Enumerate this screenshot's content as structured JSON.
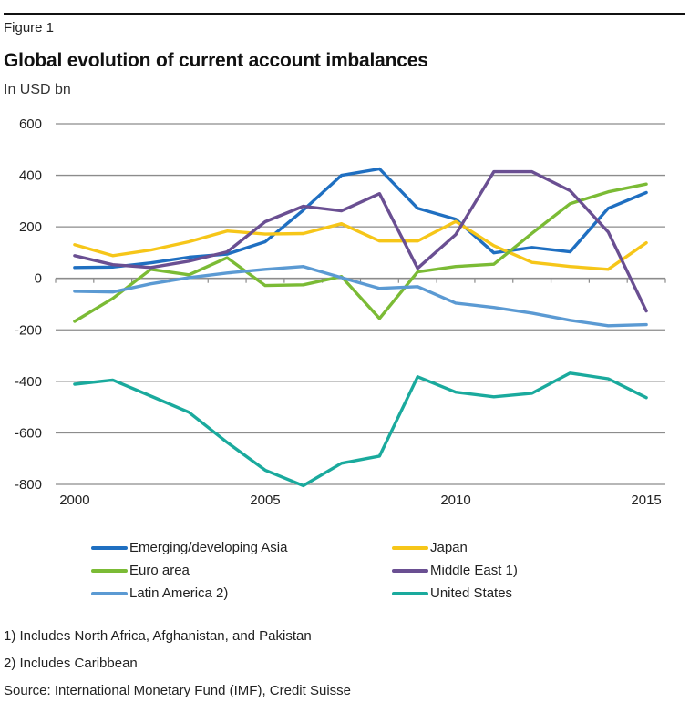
{
  "header": {
    "figure_label": "Figure 1",
    "title": "Global evolution of current account imbalances",
    "subtitle": "In USD bn"
  },
  "chart_data": {
    "type": "line",
    "title": "Global evolution of current account imbalances",
    "subtitle": "In USD bn",
    "xlabel": "",
    "ylabel": "In USD bn",
    "x": [
      2000,
      2001,
      2002,
      2003,
      2004,
      2005,
      2006,
      2007,
      2008,
      2009,
      2010,
      2011,
      2012,
      2013,
      2014,
      2015
    ],
    "x_tick_labels": [
      "2000",
      "2005",
      "2010",
      "2015"
    ],
    "y_ticks": [
      600,
      400,
      200,
      0,
      -200,
      -400,
      -600,
      -800
    ],
    "y_tick_labels": [
      "600",
      "400",
      "200",
      "0",
      "-200",
      "-400",
      "-600",
      "-800"
    ],
    "ylim": [
      -800,
      600
    ],
    "grid": true,
    "legend_position": "bottom",
    "series": [
      {
        "name": "Emerging/developing Asia",
        "color": "#1f6fc1",
        "values": [
          42,
          44,
          60,
          82,
          94,
          142,
          265,
          400,
          425,
          272,
          230,
          99,
          120,
          103,
          272,
          333
        ]
      },
      {
        "name": "Japan",
        "color": "#f6c619",
        "values": [
          131,
          88,
          110,
          142,
          184,
          172,
          174,
          212,
          145,
          145,
          221,
          127,
          62,
          46,
          35,
          138
        ]
      },
      {
        "name": "Euro area",
        "color": "#7bbb35",
        "values": [
          -167,
          -78,
          35,
          14,
          80,
          -28,
          -25,
          7,
          -156,
          25,
          46,
          55,
          175,
          290,
          336,
          366
        ]
      },
      {
        "name": "Middle East 1)",
        "color": "#6a4f92",
        "values": [
          88,
          53,
          42,
          67,
          103,
          220,
          280,
          262,
          329,
          39,
          170,
          414,
          414,
          340,
          180,
          -127
        ]
      },
      {
        "name": "Latin America 2)",
        "color": "#5b9ad3",
        "values": [
          -50,
          -53,
          -21,
          3,
          21,
          35,
          46,
          3,
          -39,
          -32,
          -96,
          -113,
          -135,
          -163,
          -184,
          -180
        ]
      },
      {
        "name": "United States",
        "color": "#1aaa9d",
        "values": [
          -411,
          -395,
          -457,
          -520,
          -637,
          -745,
          -805,
          -718,
          -690,
          -382,
          -442,
          -460,
          -446,
          -368,
          -390,
          -463
        ]
      }
    ]
  },
  "legend": [
    {
      "label": "Emerging/developing Asia",
      "color": "#1f6fc1"
    },
    {
      "label": "Japan",
      "color": "#f6c619"
    },
    {
      "label": "Euro area",
      "color": "#7bbb35"
    },
    {
      "label": "Middle East 1)",
      "color": "#6a4f92"
    },
    {
      "label": "Latin America 2)",
      "color": "#5b9ad3"
    },
    {
      "label": "United States",
      "color": "#1aaa9d"
    }
  ],
  "footnotes": {
    "note1": "1) Includes North Africa, Afghanistan, and Pakistan",
    "note2": "2) Includes Caribbean",
    "source": "Source: International Monetary Fund (IMF), Credit Suisse"
  }
}
